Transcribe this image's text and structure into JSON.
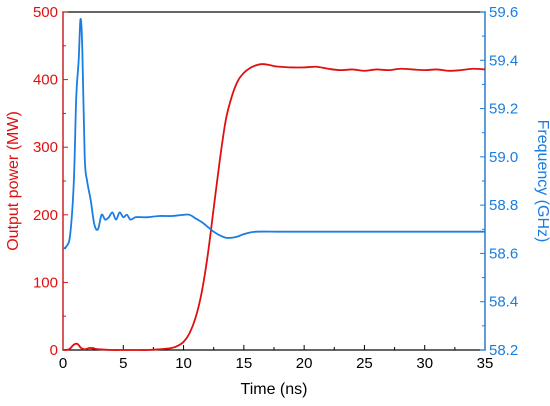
{
  "chart_data": {
    "type": "line",
    "xlabel": "Time (ns)",
    "xlim": [
      0,
      35
    ],
    "x_ticks": [
      "0",
      "5",
      "10",
      "15",
      "20",
      "25",
      "30",
      "35"
    ],
    "y_left": {
      "label": "Output power (MW)",
      "lim": [
        0,
        500
      ],
      "ticks": [
        "0",
        "100",
        "200",
        "300",
        "400",
        "500"
      ],
      "color": "#e01010"
    },
    "y_right": {
      "label": "Frequency (GHz)",
      "lim": [
        58.2,
        59.6
      ],
      "ticks": [
        "58.2",
        "58.4",
        "58.6",
        "58.8",
        "59.0",
        "59.2",
        "59.4",
        "59.6"
      ],
      "color": "#1a7de0"
    },
    "grid": false,
    "series": [
      {
        "axis": "left",
        "color": "#e01010",
        "x": [
          0,
          0.5,
          0.9,
          1.2,
          1.5,
          1.8,
          2.2,
          2.6,
          3.0,
          4.0,
          5.0,
          6.0,
          7.0,
          8.0,
          9.0,
          9.5,
          10.0,
          10.5,
          11.0,
          11.5,
          12.0,
          12.5,
          13.0,
          13.5,
          14.0,
          14.5,
          15.0,
          15.5,
          16.0,
          16.5,
          17.0,
          17.5,
          18.0,
          19.0,
          20.0,
          21.0,
          22.0,
          23.0,
          24.0,
          25.0,
          26.0,
          27.0,
          28.0,
          29.0,
          30.0,
          31.0,
          32.0,
          33.0,
          34.0,
          35.0
        ],
        "values": [
          0,
          1,
          8,
          9,
          3,
          1,
          3,
          2,
          1,
          0,
          0,
          0,
          0,
          1,
          3,
          6,
          12,
          25,
          48,
          85,
          140,
          210,
          280,
          340,
          375,
          398,
          410,
          417,
          421,
          423,
          422,
          420,
          419,
          418,
          418,
          419,
          416,
          414,
          415,
          413,
          415,
          414,
          416,
          415,
          414,
          415,
          413,
          414,
          416,
          415
        ]
      },
      {
        "axis": "right",
        "color": "#1a7de0",
        "x": [
          0,
          0.3,
          0.6,
          0.9,
          1.1,
          1.3,
          1.45,
          1.6,
          1.8,
          2.0,
          2.3,
          2.6,
          2.9,
          3.2,
          3.5,
          3.8,
          4.1,
          4.4,
          4.7,
          5.0,
          5.3,
          5.6,
          6.0,
          6.5,
          7.0,
          8.0,
          9.0,
          10.0,
          10.5,
          11.0,
          11.5,
          12.0,
          12.5,
          13.0,
          13.5,
          14.0,
          14.5,
          15.0,
          16.0,
          18.0,
          20.0,
          25.0,
          30.0,
          35.0
        ],
        "values": [
          58.62,
          58.63,
          58.68,
          58.9,
          59.25,
          59.4,
          59.57,
          59.45,
          59.0,
          58.9,
          58.82,
          58.72,
          58.7,
          58.76,
          58.74,
          58.75,
          58.77,
          58.74,
          58.77,
          58.75,
          58.76,
          58.74,
          58.75,
          58.75,
          58.75,
          58.755,
          58.755,
          58.76,
          58.76,
          58.745,
          58.73,
          58.71,
          58.69,
          58.675,
          58.665,
          58.665,
          58.67,
          58.68,
          58.69,
          58.69,
          58.69,
          58.69,
          58.69,
          58.69
        ]
      }
    ]
  }
}
